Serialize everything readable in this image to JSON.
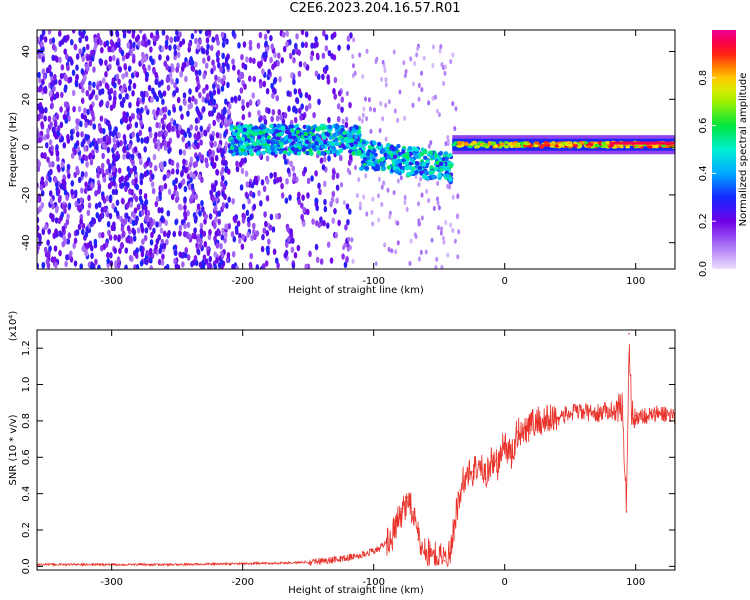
{
  "title": "C2E6.2023.204.16.57.R01",
  "colors": {
    "snr_line": "#e8322a",
    "axis": "#000000",
    "background": "#ffffff"
  },
  "chart_data": [
    {
      "type": "heatmap",
      "xlabel": "Height of straight line (km)",
      "ylabel": "Frequency (Hz)",
      "xlim": [
        -357,
        130
      ],
      "ylim": [
        -51,
        49
      ],
      "xticks": [
        -300,
        -200,
        -100,
        0,
        100
      ],
      "yticks": [
        -40,
        -20,
        0,
        20,
        40
      ],
      "colorbar": {
        "label": "Normalized spectral amplitude",
        "range": [
          0.0,
          1.0
        ],
        "ticks": [
          "0.0",
          "0.2",
          "0.4",
          "0.6",
          "0.8"
        ],
        "colormap": "rainbow (white/violet low → blue → cyan → green → yellow → red → magenta high)"
      },
      "features": [
        {
          "x_range": [
            -357,
            -120
          ],
          "description": "broadband noise across all frequencies, amplitude ~0.1-0.3"
        },
        {
          "x_range": [
            -210,
            -40
          ],
          "center_frequency_hz": [
            3,
            -8
          ],
          "amplitude": "0.3-0.6"
        },
        {
          "x_range": [
            -40,
            130
          ],
          "center_frequency_hz": 1,
          "amplitude": "0.6-1.0"
        }
      ],
      "grid": false
    },
    {
      "type": "line",
      "xlabel": "Height of straight line (km)",
      "ylabel": "SNR (10 * v/v)",
      "y_multiplier_label": "(x10⁴)",
      "xlim": [
        -357,
        130
      ],
      "ylim": [
        -0.02,
        1.3
      ],
      "xticks": [
        -300,
        -200,
        -100,
        0,
        100
      ],
      "yticks": [
        "0.0",
        "0.2",
        "0.4",
        "0.6",
        "0.8",
        "1.0",
        "1.2"
      ],
      "grid": false,
      "series": [
        {
          "x": [
            -357,
            -300,
            -250,
            -200,
            -160,
            -130,
            -110,
            -95,
            -85,
            -78,
            -74,
            -70,
            -66,
            -60,
            -52,
            -46,
            -42,
            -38,
            -34,
            -30,
            -25,
            -20,
            -15,
            -10,
            -5,
            0,
            5,
            10,
            15,
            20,
            25,
            30,
            40,
            50,
            55,
            60,
            70,
            80,
            85,
            90,
            93,
            95,
            97,
            100,
            110,
            120,
            130
          ],
          "y": [
            0.01,
            0.01,
            0.01,
            0.015,
            0.02,
            0.035,
            0.06,
            0.1,
            0.18,
            0.3,
            0.38,
            0.3,
            0.15,
            0.08,
            0.05,
            0.03,
            0.06,
            0.25,
            0.42,
            0.5,
            0.52,
            0.56,
            0.5,
            0.58,
            0.56,
            0.68,
            0.6,
            0.74,
            0.76,
            0.78,
            0.8,
            0.8,
            0.82,
            0.84,
            0.85,
            0.85,
            0.84,
            0.86,
            0.85,
            0.88,
            0.3,
            1.28,
            0.82,
            0.83,
            0.83,
            0.84,
            0.83
          ]
        }
      ]
    }
  ]
}
